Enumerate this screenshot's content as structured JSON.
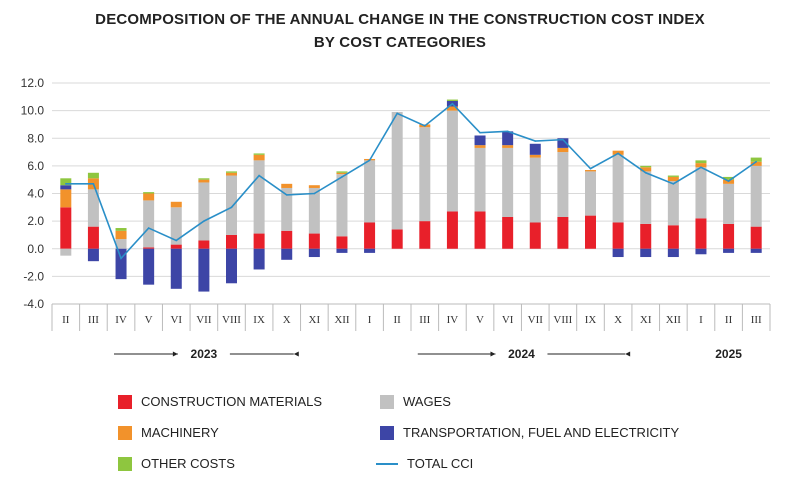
{
  "title_lines": [
    "DECOMPOSITION OF THE ANNUAL CHANGE IN THE CONSTRUCTION COST INDEX",
    "BY COST CATEGORIES"
  ],
  "chart_data": {
    "type": "bar",
    "stacked": true,
    "title": "DECOMPOSITION OF THE ANNUAL CHANGE IN THE CONSTRUCTION COST INDEX BY COST CATEGORIES",
    "categories": [
      "II",
      "III",
      "IV",
      "V",
      "VI",
      "VII",
      "VIII",
      "IX",
      "X",
      "XI",
      "XII",
      "I",
      "II",
      "III",
      "IV",
      "V",
      "VI",
      "VII",
      "VIII",
      "IX",
      "X",
      "XI",
      "XII",
      "I",
      "II",
      "III"
    ],
    "year_groups": [
      {
        "label": "2023",
        "start": 0,
        "end": 10
      },
      {
        "label": "2024",
        "start": 11,
        "end": 22
      },
      {
        "label": "2025",
        "start": 23,
        "end": 25
      }
    ],
    "ylim": [
      -4.0,
      12.0
    ],
    "yticks": [
      "12.0",
      "10.0",
      "8.0",
      "6.0",
      "4.0",
      "2.0",
      "0.0",
      "-2.0",
      "-4.0"
    ],
    "series": [
      {
        "name": "CONSTRUCTION MATERIALS",
        "color": "#e8202a",
        "values": [
          3.0,
          1.6,
          0.0,
          0.1,
          0.3,
          0.6,
          1.0,
          1.1,
          1.3,
          1.1,
          0.9,
          1.9,
          1.4,
          2.0,
          2.7,
          2.7,
          2.3,
          1.9,
          2.3,
          2.4,
          1.9,
          1.8,
          1.7,
          2.2,
          1.8,
          1.6
        ]
      },
      {
        "name": "WAGES",
        "color": "#c1c1c1",
        "values": [
          -0.5,
          2.7,
          0.7,
          3.4,
          2.7,
          4.2,
          4.3,
          5.3,
          3.1,
          3.3,
          4.5,
          4.5,
          8.5,
          6.8,
          7.3,
          4.6,
          5.0,
          4.7,
          4.7,
          3.2,
          4.9,
          3.8,
          3.2,
          3.7,
          2.9,
          4.4
        ]
      },
      {
        "name": "MACHINERY",
        "color": "#f2922b",
        "values": [
          1.3,
          0.8,
          0.6,
          0.5,
          0.4,
          0.2,
          0.2,
          0.4,
          0.3,
          0.2,
          0.1,
          0.1,
          0.0,
          0.2,
          0.3,
          0.2,
          0.2,
          0.2,
          0.3,
          0.1,
          0.3,
          0.3,
          0.3,
          0.3,
          0.3,
          0.3
        ]
      },
      {
        "name": "TRANSPORTATION, FUEL AND ELECTRICITY",
        "color": "#3d45a6",
        "values": [
          0.3,
          -0.9,
          -2.2,
          -2.6,
          -2.9,
          -3.1,
          -2.5,
          -1.5,
          -0.8,
          -0.6,
          -0.3,
          -0.3,
          0.0,
          0.0,
          0.4,
          0.7,
          1.0,
          0.8,
          0.7,
          0.0,
          -0.6,
          -0.6,
          -0.6,
          -0.4,
          -0.3,
          -0.3
        ]
      },
      {
        "name": "OTHER COSTS",
        "color": "#8ec63f",
        "values": [
          0.5,
          0.4,
          0.2,
          0.1,
          0.0,
          0.1,
          0.1,
          0.1,
          0.0,
          0.0,
          0.1,
          0.0,
          0.0,
          0.0,
          0.1,
          0.0,
          0.0,
          0.0,
          0.0,
          0.0,
          0.0,
          0.1,
          0.1,
          0.2,
          0.2,
          0.3
        ]
      }
    ],
    "line_series": {
      "name": "TOTAL CCI",
      "color": "#2a8fc8",
      "values": [
        4.7,
        4.7,
        -0.7,
        1.5,
        0.6,
        2.0,
        3.0,
        5.3,
        3.9,
        4.0,
        5.2,
        6.4,
        9.8,
        8.9,
        10.5,
        8.4,
        8.5,
        7.8,
        7.9,
        5.8,
        6.9,
        5.5,
        4.7,
        5.9,
        4.9,
        6.3
      ]
    },
    "xlabel": "",
    "ylabel": "",
    "grid": true,
    "legend": "bottom"
  },
  "legend": [
    {
      "label": "CONSTRUCTION MATERIALS",
      "color": "#e8202a",
      "kind": "box"
    },
    {
      "label": "WAGES",
      "color": "#c1c1c1",
      "kind": "box"
    },
    {
      "label": "MACHINERY",
      "color": "#f2922b",
      "kind": "box"
    },
    {
      "label": "TRANSPORTATION, FUEL AND ELECTRICITY",
      "color": "#3d45a6",
      "kind": "box"
    },
    {
      "label": "OTHER COSTS",
      "color": "#8ec63f",
      "kind": "box"
    },
    {
      "label": "TOTAL CCI",
      "color": "#2a8fc8",
      "kind": "line"
    }
  ]
}
